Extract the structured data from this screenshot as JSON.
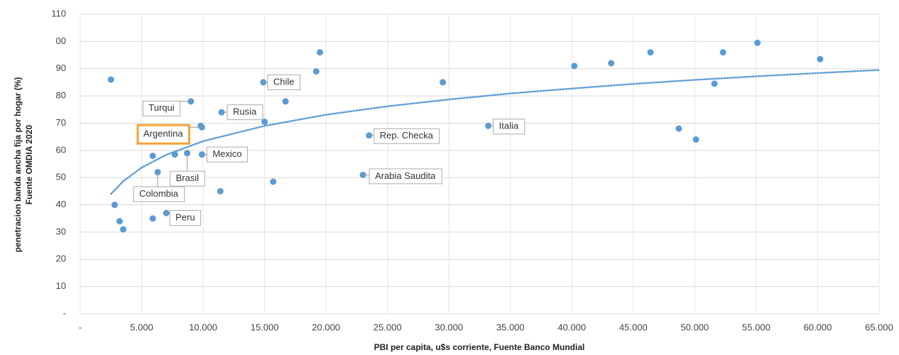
{
  "chart_data": {
    "type": "scatter",
    "x_label": "PBI per capita, u$s corriente, Fuente Banco Mundial",
    "y_label": [
      "penetracion banda ancha fija por hogar (%)",
      "Fuente OMDIA 2020"
    ],
    "xlim": [
      0,
      65000
    ],
    "ylim": [
      0,
      110
    ],
    "xticks": [
      {
        "value": 0,
        "label": "-"
      },
      {
        "value": 5000,
        "label": "5.000"
      },
      {
        "value": 10000,
        "label": "10.000"
      },
      {
        "value": 15000,
        "label": "15.000"
      },
      {
        "value": 20000,
        "label": "20.000"
      },
      {
        "value": 25000,
        "label": "25.000"
      },
      {
        "value": 30000,
        "label": "30.000"
      },
      {
        "value": 35000,
        "label": "35.000"
      },
      {
        "value": 40000,
        "label": "40.000"
      },
      {
        "value": 45000,
        "label": "45.000"
      },
      {
        "value": 50000,
        "label": "50.000"
      },
      {
        "value": 55000,
        "label": "55.000"
      },
      {
        "value": 60000,
        "label": "60.000"
      },
      {
        "value": 65000,
        "label": "65.000"
      }
    ],
    "yticks": [
      {
        "value": 0,
        "label": "-"
      },
      10,
      20,
      30,
      40,
      50,
      60,
      70,
      80,
      90,
      {
        "value": 100,
        "label": "00"
      },
      110
    ],
    "grid": true,
    "series": [
      {
        "color": "#5b9bd5",
        "x": [
          2500,
          2800,
          3200,
          3500,
          5900,
          7000,
          5900,
          6300,
          7700,
          8700,
          9000,
          9800,
          9900,
          9900,
          11400,
          11500,
          14900,
          15000,
          15700,
          16700,
          19200,
          19500,
          23500,
          23000,
          29500,
          33200,
          40200,
          43200,
          46400,
          48700,
          50100,
          51600,
          52300,
          55100,
          60200
        ],
        "values": [
          86,
          40,
          34,
          31,
          35,
          37,
          58,
          52,
          58.5,
          59,
          78,
          69,
          68.5,
          58.5,
          45,
          74,
          85,
          70.5,
          48.5,
          78,
          89,
          96,
          65.5,
          51,
          85,
          69,
          91,
          92,
          96,
          68,
          64,
          84.5,
          96,
          99.5,
          93.5
        ],
        "labels": [
          null,
          null,
          null,
          null,
          null,
          "Peru",
          null,
          "Colombia",
          null,
          "Brasil",
          "Turqui",
          null,
          "Argentina",
          "Mexico",
          null,
          "Rusia",
          "Chile",
          null,
          null,
          null,
          null,
          null,
          "Rep. Checka",
          "Arabia Saudita",
          null,
          "Italia",
          null,
          null,
          null,
          null,
          null,
          null,
          null,
          null,
          null
        ]
      }
    ],
    "trendline": {
      "color": "#5b9bd5",
      "x": [
        2500,
        3500,
        5000,
        7000,
        10000,
        15000,
        20000,
        25000,
        30000,
        35000,
        40000,
        45000,
        50000,
        55000,
        60000,
        65000
      ],
      "values": [
        44,
        48.7,
        53.7,
        58.4,
        63.4,
        69,
        73.1,
        76.2,
        78.7,
        80.9,
        82.7,
        84.4,
        85.9,
        87.2,
        88.4,
        89.5
      ]
    }
  }
}
